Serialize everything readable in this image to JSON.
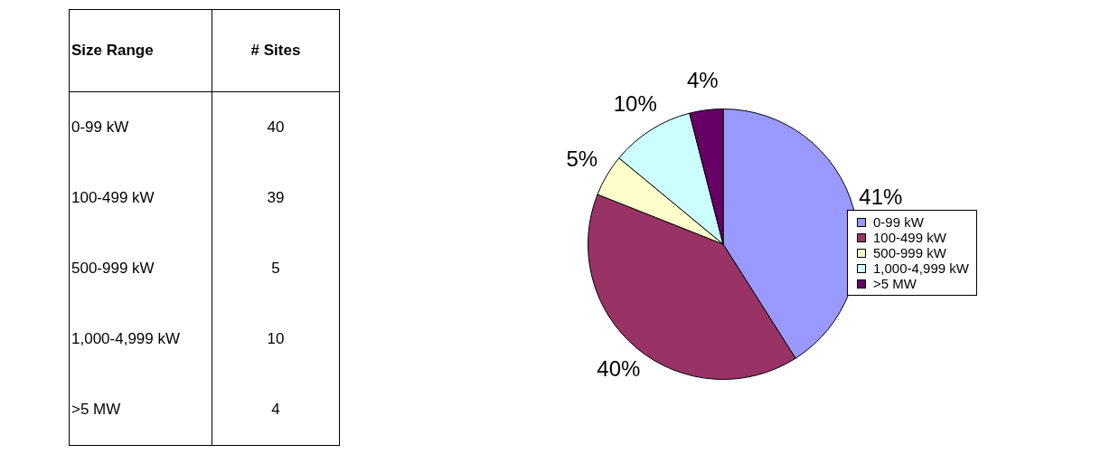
{
  "chart_data": [
    {
      "type": "other",
      "annotations": [
        "Size Range",
        "# Sites"
      ],
      "categories": [
        "0-99 kW",
        "100-499 kW",
        "500-999 kW",
        "1,000-4,999 kW",
        ">5 MW"
      ],
      "values": [
        40,
        39,
        5,
        10,
        4
      ],
      "data_labels": true
    },
    {
      "type": "pie",
      "categories": [
        "0-99 kW",
        "100-499 kW",
        "500-999 kW",
        "1,000-4,999 kW",
        ">5 MW"
      ],
      "values": [
        41,
        40,
        5,
        10,
        4
      ],
      "colors": [
        "#9999ff",
        "#993366",
        "#ffffcc",
        "#ccffff",
        "#660066"
      ],
      "value_labels": [
        "41%",
        "40%",
        "5%",
        "10%",
        "4%"
      ],
      "legend": "right"
    }
  ]
}
